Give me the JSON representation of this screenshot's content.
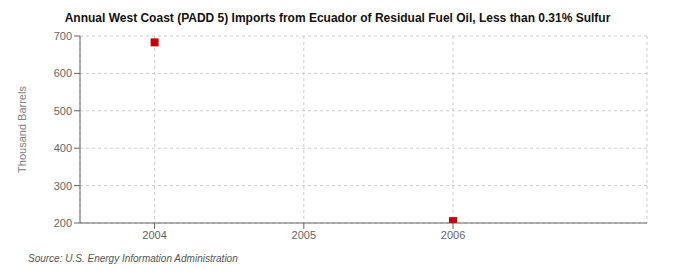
{
  "chart_data": {
    "type": "scatter",
    "title": "Annual West Coast (PADD 5) Imports from Ecuador of Residual Fuel Oil, Less than 0.31% Sulfur",
    "ylabel": "Thousand Barrels",
    "annotation": "Source: U.S. Energy Information Administration",
    "x": [
      2004,
      2006
    ],
    "values": [
      683,
      205
    ],
    "color": "#cc0000",
    "marker": "square",
    "xlim": [
      2003.5,
      2007.3
    ],
    "ylim": [
      200,
      700
    ],
    "xticks": [
      2004,
      2005,
      2006
    ],
    "yticks": [
      200,
      300,
      400,
      500,
      600,
      700
    ],
    "grid": true
  }
}
